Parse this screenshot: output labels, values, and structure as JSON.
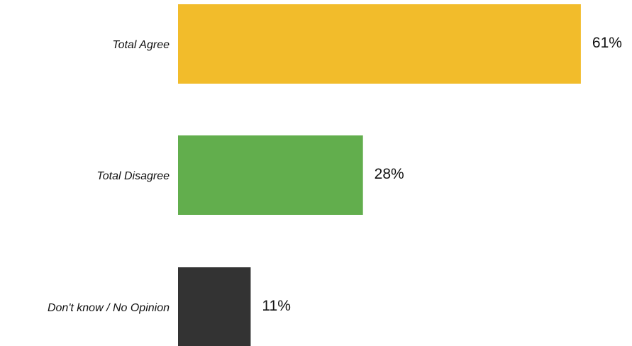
{
  "chart_data": {
    "type": "bar",
    "orientation": "horizontal",
    "categories": [
      "Total Agree",
      "Total Disagree",
      "Don't know / No Opinion"
    ],
    "values": [
      61,
      28,
      11
    ],
    "value_labels": [
      "61%",
      "28%",
      "11%"
    ],
    "colors": [
      "#F2BC2B",
      "#62AE4D",
      "#333333"
    ],
    "unit": "%",
    "xlim": [
      0,
      100
    ],
    "title": "",
    "xlabel": "",
    "ylabel": "",
    "grid": false,
    "legend": "none"
  }
}
